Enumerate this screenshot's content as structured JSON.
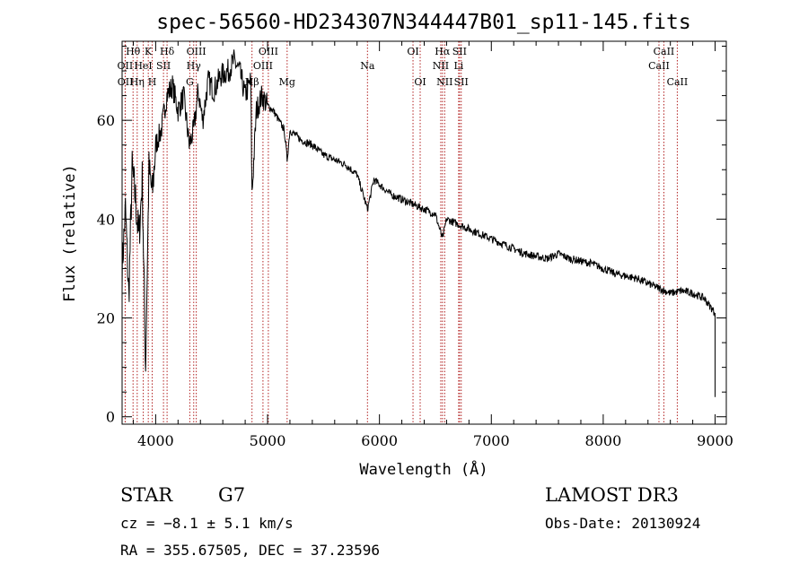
{
  "chart_data": {
    "type": "line",
    "title": "spec-56560-HD234307N344447B01_sp11-145.fits",
    "xlabel": "Wavelength (Å)",
    "ylabel": "Flux (relative)",
    "xlim": [
      3700,
      9100
    ],
    "ylim": [
      -1.5,
      76
    ],
    "xticks": [
      4000,
      5000,
      6000,
      7000,
      8000,
      9000
    ],
    "yticks": [
      0,
      20,
      40,
      60
    ],
    "series": [
      {
        "x": [
          3700,
          3730,
          3760,
          3790,
          3820,
          3850,
          3880,
          3910,
          3940,
          3970,
          4000,
          4050,
          4100,
          4150,
          4200,
          4250,
          4300,
          4340,
          4380,
          4420,
          4470,
          4520,
          4580,
          4650,
          4700,
          4750,
          4800,
          4850,
          4861,
          4900,
          4950,
          5000,
          5050,
          5100,
          5150,
          5175,
          5200,
          5300,
          5400,
          5500,
          5600,
          5700,
          5800,
          5893,
          5950,
          6000,
          6100,
          6200,
          6300,
          6400,
          6500,
          6563,
          6600,
          6700,
          6800,
          6900,
          7000,
          7100,
          7200,
          7300,
          7400,
          7500,
          7600,
          7700,
          7800,
          7900,
          8000,
          8100,
          8200,
          8300,
          8400,
          8500,
          8600,
          8700,
          8800,
          8900,
          9000
        ],
        "y": [
          30,
          42,
          24,
          50,
          44,
          36,
          48,
          10,
          50,
          45,
          55,
          58,
          65,
          67,
          62,
          65,
          55,
          58,
          66,
          60,
          68,
          66,
          69,
          70,
          72,
          70,
          65,
          68,
          45,
          62,
          65,
          63,
          62,
          60,
          58,
          52,
          58,
          56,
          55,
          53,
          52,
          51,
          49,
          42,
          48,
          47,
          45,
          44,
          43,
          42,
          41,
          36,
          40,
          39,
          38,
          37,
          36,
          35,
          34,
          33,
          32.5,
          32,
          33,
          32,
          31.5,
          31,
          30,
          29,
          28.5,
          28,
          27,
          26,
          25,
          25.5,
          25,
          24,
          21
        ]
      }
    ],
    "line_markers": [
      {
        "label": "Hθ",
        "x": 3798,
        "row": 1
      },
      {
        "label": "OII",
        "x": 3727,
        "row": 2
      },
      {
        "label": "OII",
        "x": 3729,
        "row": 3
      },
      {
        "label": "Hη",
        "x": 3835,
        "row": 3
      },
      {
        "label": "HeI",
        "x": 3889,
        "row": 2
      },
      {
        "label": "K",
        "x": 3934,
        "row": 1
      },
      {
        "label": "SII",
        "x": 4070,
        "row": 2
      },
      {
        "label": "H",
        "x": 3969,
        "row": 3
      },
      {
        "label": "Hδ",
        "x": 4102,
        "row": 1
      },
      {
        "label": "OIII",
        "x": 4363,
        "row": 1
      },
      {
        "label": "Hγ",
        "x": 4340,
        "row": 2
      },
      {
        "label": "G",
        "x": 4305,
        "row": 3
      },
      {
        "label": "Hβ",
        "x": 4861,
        "row": 3
      },
      {
        "label": "OIII",
        "x": 5007,
        "row": 1
      },
      {
        "label": "OIII",
        "x": 4959,
        "row": 2
      },
      {
        "label": "Mg",
        "x": 5175,
        "row": 3
      },
      {
        "label": "Na",
        "x": 5893,
        "row": 2
      },
      {
        "label": "OI",
        "x": 6300,
        "row": 1
      },
      {
        "label": "OI",
        "x": 6364,
        "row": 3
      },
      {
        "label": "Hα",
        "x": 6563,
        "row": 1
      },
      {
        "label": "NII",
        "x": 6548,
        "row": 2
      },
      {
        "label": "NII",
        "x": 6583,
        "row": 3
      },
      {
        "label": "SII",
        "x": 6716,
        "row": 1
      },
      {
        "label": "Li",
        "x": 6708,
        "row": 2
      },
      {
        "label": "SII",
        "x": 6731,
        "row": 3
      },
      {
        "label": "CaII",
        "x": 8542,
        "row": 1
      },
      {
        "label": "CaII",
        "x": 8498,
        "row": 2
      },
      {
        "label": "CaII",
        "x": 8662,
        "row": 3
      }
    ],
    "grid": false,
    "colors": {
      "spectrum": "#000000",
      "marker_line": "#b22222",
      "axis": "#000000"
    }
  },
  "info": {
    "class_label": "STAR",
    "subclass": "G7",
    "survey": "LAMOST DR3",
    "cz": "cz = −8.1 ± 5.1 km/s",
    "obs_date": "Obs-Date: 20130924",
    "radec": "RA = 355.67505, DEC =  37.23596"
  }
}
